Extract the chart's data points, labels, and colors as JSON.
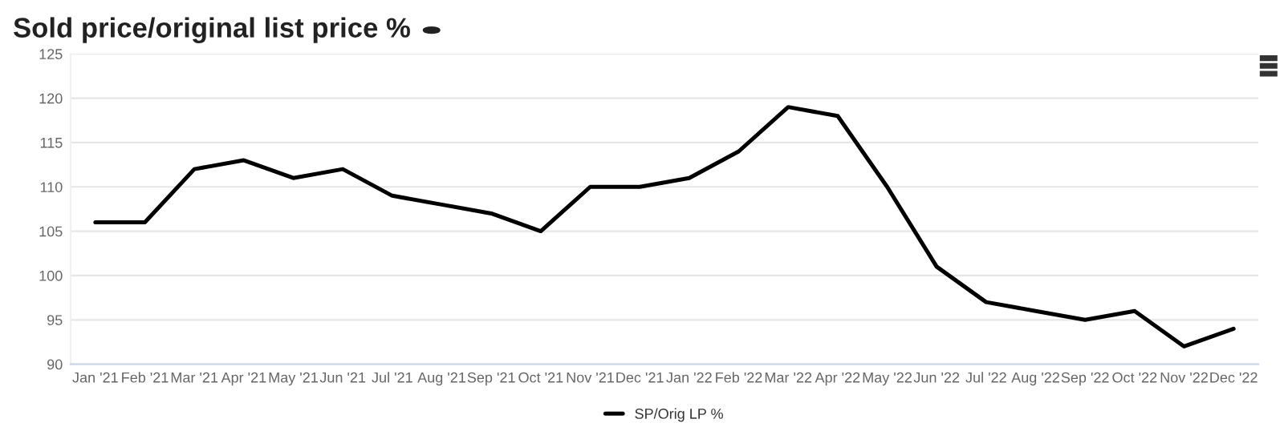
{
  "chart_data": {
    "type": "line",
    "title": "Sold price/original list price %",
    "categories": [
      "Jan '21",
      "Feb '21",
      "Mar '21",
      "Apr '21",
      "May '21",
      "Jun '21",
      "Jul '21",
      "Aug '21",
      "Sep '21",
      "Oct '21",
      "Nov '21",
      "Dec '21",
      "Jan '22",
      "Feb '22",
      "Mar '22",
      "Apr '22",
      "May '22",
      "Jun '22",
      "Jul '22",
      "Aug '22",
      "Sep '22",
      "Oct '22",
      "Nov '22",
      "Dec '22"
    ],
    "series": [
      {
        "name": "SP/Orig LP %",
        "color": "#000000",
        "values": [
          106,
          106,
          112,
          113,
          111,
          112,
          109,
          108,
          107,
          105,
          110,
          110,
          111,
          114,
          119,
          118,
          110,
          101,
          97,
          96,
          95,
          96,
          92,
          94
        ]
      }
    ],
    "ylim": [
      90,
      125
    ],
    "yticks": [
      90,
      95,
      100,
      105,
      110,
      115,
      120,
      125
    ],
    "grid": "y",
    "legend": "bottom",
    "marker": "none",
    "line_style": "solid"
  }
}
